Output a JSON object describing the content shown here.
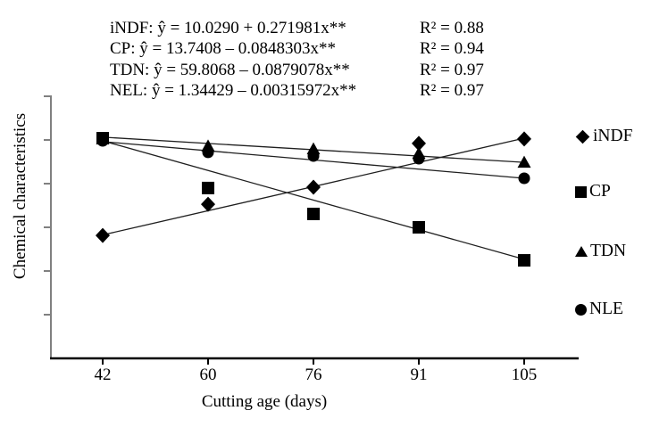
{
  "figure": {
    "equations": [
      {
        "series": "iNDF",
        "text": "iNDF: ŷ = 10.0290 + 0.271981x**",
        "r2": "R² = 0.88"
      },
      {
        "series": "CP",
        "text": "CP: ŷ = 13.7408 – 0.0848303x**",
        "r2": "R² = 0.94"
      },
      {
        "series": "TDN",
        "text": "TDN: ŷ = 59.8068 – 0.0879078x**",
        "r2": "R² = 0.97"
      },
      {
        "series": "NEL",
        "text": "NEL: ŷ = 1.34429 – 0.00315972x**",
        "r2": "R² = 0.97"
      }
    ],
    "y_axis_label": "Chemical characteristics",
    "x_axis_label": "Cutting age (days)",
    "x_tick_labels": [
      "42",
      "60",
      "76",
      "91",
      "105"
    ],
    "legend": [
      {
        "label": "iNDF",
        "marker": "diamond"
      },
      {
        "label": "CP",
        "marker": "square"
      },
      {
        "label": "TDN",
        "marker": "triangle"
      },
      {
        "label": "NLE",
        "marker": "circle"
      }
    ]
  },
  "colors": {
    "background": "#ffffff",
    "text": "#000000",
    "marker": "#000000",
    "trend_line": "#1f1f1f",
    "y_axis": "#808080",
    "x_axis": "#000000"
  },
  "chart_data": {
    "type": "scatter",
    "title": "",
    "xlabel": "Cutting age (days)",
    "ylabel": "Chemical characteristics",
    "x": [
      42,
      60,
      76,
      91,
      105
    ],
    "y_axis_numeric_labels": false,
    "y_tick_count": 6,
    "legend_position": "right",
    "grid": false,
    "series": [
      {
        "name": "iNDF",
        "marker": "diamond",
        "regression": "ŷ = 10.0290 + 0.271981x**",
        "r2": 0.88,
        "points_rel_height": [
          0.469,
          0.588,
          0.653,
          0.82,
          0.837
        ],
        "trendline_rel_height": [
          0.471,
          0.84
        ]
      },
      {
        "name": "CP",
        "marker": "square",
        "regression": "ŷ = 13.7408 – 0.0848303x**",
        "r2": 0.94,
        "points_rel_height": [
          0.84,
          0.65,
          0.551,
          0.5,
          0.374
        ],
        "trendline_rel_height": [
          0.83,
          0.378
        ]
      },
      {
        "name": "TDN",
        "marker": "triangle",
        "regression": "ŷ = 59.8068 – 0.0879078x**",
        "r2": 0.97,
        "points_rel_height": [
          0.837,
          0.81,
          0.799,
          0.782,
          0.748
        ],
        "trendline_rel_height": [
          0.844,
          0.748
        ]
      },
      {
        "name": "NLE",
        "marker": "circle",
        "regression": "ŷ = 1.34429 – 0.00315972x**",
        "r2": 0.97,
        "points_rel_height": [
          0.83,
          0.786,
          0.772,
          0.762,
          0.687
        ],
        "trendline_rel_height": [
          0.827,
          0.687
        ]
      }
    ],
    "note": "Y axis shows tick marks only (no numeric labels); point heights recorded as fraction of plot height above the x-axis."
  }
}
